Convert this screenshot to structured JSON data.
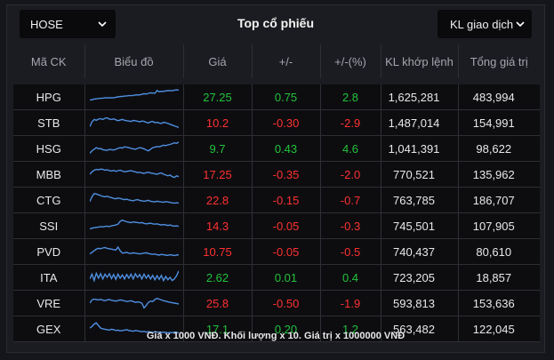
{
  "header": {
    "exchange_select": "HOSE",
    "title": "Top cổ phiếu",
    "sort_select": "KL giao dịch"
  },
  "columns": [
    "Mã CK",
    "Biểu đồ",
    "Giá",
    "+/-",
    "+/-(%)",
    "KL khớp lệnh",
    "Tổng giá trị"
  ],
  "colors": {
    "up": "#22c33a",
    "down": "#ff3030",
    "spark": "#4f8fe0"
  },
  "rows": [
    {
      "code": "HPG",
      "price": "27.25",
      "change": "0.75",
      "pct": "2.8",
      "volume": "1,625,281",
      "value": "483,994",
      "dir": "up",
      "spark": [
        0.3,
        0.32,
        0.36,
        0.38,
        0.4,
        0.41,
        0.42,
        0.44,
        0.45,
        0.44,
        0.45,
        0.44,
        0.48,
        0.5,
        0.52,
        0.53,
        0.55,
        0.56,
        0.58,
        0.58,
        0.59,
        0.62,
        0.63,
        0.62,
        0.66,
        0.7,
        0.68,
        0.72,
        0.75,
        0.74,
        0.73,
        0.9,
        0.82,
        0.85,
        0.84,
        0.88,
        0.89,
        0.9,
        0.88,
        0.92,
        0.94,
        0.93
      ]
    },
    {
      "code": "STB",
      "price": "10.2",
      "change": "-0.30",
      "pct": "-2.9",
      "volume": "1,487,014",
      "value": "154,991",
      "dir": "down",
      "spark": [
        0.25,
        0.55,
        0.7,
        0.65,
        0.72,
        0.75,
        0.7,
        0.78,
        0.8,
        0.72,
        0.7,
        0.74,
        0.68,
        0.62,
        0.66,
        0.7,
        0.65,
        0.62,
        0.6,
        0.58,
        0.64,
        0.62,
        0.59,
        0.55,
        0.6,
        0.58,
        0.52,
        0.48,
        0.55,
        0.58,
        0.5,
        0.52,
        0.48,
        0.45,
        0.52,
        0.5,
        0.45,
        0.4,
        0.35,
        0.3,
        0.25,
        0.2
      ]
    },
    {
      "code": "HSG",
      "price": "9.7",
      "change": "0.43",
      "pct": "4.6",
      "volume": "1,041,391",
      "value": "98,622",
      "dir": "up",
      "spark": [
        0.2,
        0.35,
        0.45,
        0.55,
        0.48,
        0.5,
        0.42,
        0.4,
        0.38,
        0.44,
        0.42,
        0.4,
        0.45,
        0.5,
        0.55,
        0.52,
        0.6,
        0.58,
        0.55,
        0.5,
        0.48,
        0.45,
        0.5,
        0.55,
        0.52,
        0.48,
        0.4,
        0.35,
        0.45,
        0.55,
        0.58,
        0.62,
        0.6,
        0.65,
        0.7,
        0.68,
        0.72,
        0.75,
        0.8,
        0.85,
        0.82,
        0.9
      ]
    },
    {
      "code": "MBB",
      "price": "17.25",
      "change": "-0.35",
      "pct": "-2.0",
      "volume": "770,521",
      "value": "135,962",
      "dir": "down",
      "spark": [
        0.5,
        0.65,
        0.75,
        0.8,
        0.78,
        0.82,
        0.8,
        0.75,
        0.78,
        0.72,
        0.7,
        0.74,
        0.68,
        0.72,
        0.75,
        0.7,
        0.65,
        0.68,
        0.7,
        0.72,
        0.68,
        0.65,
        0.6,
        0.62,
        0.58,
        0.55,
        0.6,
        0.62,
        0.58,
        0.55,
        0.52,
        0.5,
        0.55,
        0.58,
        0.5,
        0.45,
        0.4,
        0.45,
        0.35,
        0.3,
        0.4,
        0.35
      ]
    },
    {
      "code": "CTG",
      "price": "22.8",
      "change": "-0.15",
      "pct": "-0.7",
      "volume": "763,785",
      "value": "186,707",
      "dir": "down",
      "spark": [
        0.4,
        0.7,
        0.9,
        0.88,
        0.82,
        0.78,
        0.72,
        0.7,
        0.74,
        0.68,
        0.65,
        0.6,
        0.58,
        0.62,
        0.6,
        0.55,
        0.52,
        0.55,
        0.5,
        0.48,
        0.45,
        0.5,
        0.52,
        0.48,
        0.45,
        0.42,
        0.45,
        0.48,
        0.42,
        0.4,
        0.38,
        0.42,
        0.4,
        0.38,
        0.36,
        0.4,
        0.38,
        0.35,
        0.32,
        0.3,
        0.33,
        0.3
      ]
    },
    {
      "code": "SSI",
      "price": "14.3",
      "change": "-0.05",
      "pct": "-0.3",
      "volume": "745,501",
      "value": "107,905",
      "dir": "down",
      "spark": [
        0.3,
        0.35,
        0.38,
        0.4,
        0.42,
        0.45,
        0.43,
        0.46,
        0.48,
        0.45,
        0.5,
        0.52,
        0.55,
        0.6,
        0.78,
        0.85,
        0.8,
        0.75,
        0.72,
        0.7,
        0.74,
        0.72,
        0.7,
        0.68,
        0.7,
        0.65,
        0.62,
        0.64,
        0.66,
        0.62,
        0.6,
        0.62,
        0.58,
        0.55,
        0.58,
        0.55,
        0.52,
        0.55,
        0.5,
        0.48,
        0.5,
        0.46
      ]
    },
    {
      "code": "PVD",
      "price": "10.75",
      "change": "-0.05",
      "pct": "-0.5",
      "volume": "740,437",
      "value": "80,610",
      "dir": "down",
      "spark": [
        0.35,
        0.45,
        0.55,
        0.65,
        0.7,
        0.68,
        0.72,
        0.75,
        0.7,
        0.68,
        0.65,
        0.62,
        0.6,
        0.78,
        0.55,
        0.4,
        0.42,
        0.45,
        0.4,
        0.38,
        0.42,
        0.4,
        0.38,
        0.35,
        0.38,
        0.4,
        0.42,
        0.38,
        0.35,
        0.32,
        0.35,
        0.3,
        0.28,
        0.32,
        0.3,
        0.28,
        0.26,
        0.3,
        0.28,
        0.25,
        0.28,
        0.3
      ]
    },
    {
      "code": "ITA",
      "price": "2.62",
      "change": "0.01",
      "pct": "0.4",
      "volume": "723,205",
      "value": "18,857",
      "dir": "up",
      "spark": [
        0.4,
        0.7,
        0.3,
        0.75,
        0.45,
        0.72,
        0.4,
        0.7,
        0.5,
        0.72,
        0.42,
        0.68,
        0.38,
        0.7,
        0.45,
        0.65,
        0.4,
        0.68,
        0.45,
        0.7,
        0.4,
        0.72,
        0.5,
        0.68,
        0.4,
        0.7,
        0.45,
        0.65,
        0.4,
        0.62,
        0.35,
        0.6,
        0.38,
        0.62,
        0.3,
        0.55,
        0.35,
        0.5,
        0.3,
        0.4,
        0.6,
        0.9
      ]
    },
    {
      "code": "VRE",
      "price": "25.8",
      "change": "-0.50",
      "pct": "-1.9",
      "volume": "593,813",
      "value": "153,636",
      "dir": "down",
      "spark": [
        0.5,
        0.7,
        0.75,
        0.72,
        0.7,
        0.74,
        0.68,
        0.65,
        0.7,
        0.72,
        0.68,
        0.65,
        0.62,
        0.66,
        0.7,
        0.68,
        0.64,
        0.6,
        0.62,
        0.65,
        0.6,
        0.55,
        0.58,
        0.55,
        0.5,
        0.2,
        0.35,
        0.55,
        0.62,
        0.6,
        0.72,
        0.8,
        0.75,
        0.7,
        0.65,
        0.62,
        0.58,
        0.55,
        0.52,
        0.5,
        0.48,
        0.45
      ]
    },
    {
      "code": "GEX",
      "price": "17.1",
      "change": "0.20",
      "pct": "1.2",
      "volume": "563,482",
      "value": "122,045",
      "dir": "up",
      "spark": [
        0.55,
        0.65,
        0.8,
        0.88,
        0.7,
        0.55,
        0.5,
        0.48,
        0.45,
        0.42,
        0.48,
        0.45,
        0.4,
        0.42,
        0.38,
        0.4,
        0.42,
        0.45,
        0.4,
        0.38,
        0.35,
        0.4,
        0.38,
        0.35,
        0.32,
        0.35,
        0.3,
        0.33,
        0.3,
        0.28,
        0.32,
        0.3,
        0.28,
        0.26,
        0.3,
        0.28,
        0.25,
        0.28,
        0.26,
        0.3,
        0.28,
        0.25
      ]
    }
  ],
  "footer": "Giá x 1000 VNĐ. Khối lượng x 10. Giá trị x 1000000 VNĐ"
}
